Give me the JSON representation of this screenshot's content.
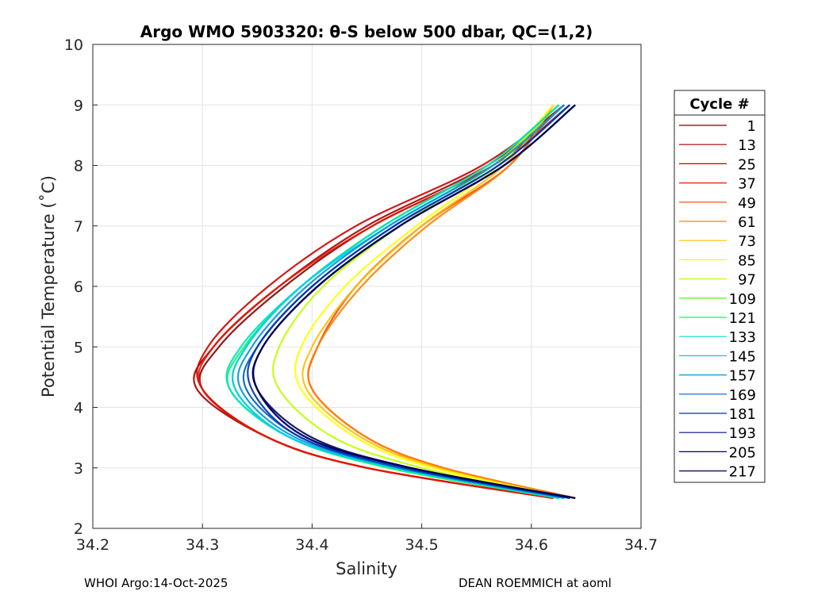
{
  "chart_data": {
    "type": "line",
    "title": "Argo WMO 5903320: θ-S below 500 dbar,  QC=(1,2)",
    "xlabel": "Salinity",
    "ylabel": "Potential Temperature (˚C)",
    "xlim": [
      34.2,
      34.7
    ],
    "ylim": [
      2,
      10
    ],
    "xticks": [
      "34.2",
      "34.3",
      "34.4",
      "34.5",
      "34.6",
      "34.7"
    ],
    "yticks": [
      "2",
      "3",
      "4",
      "5",
      "6",
      "7",
      "8",
      "9",
      "10"
    ],
    "grid": true,
    "legend_title": "Cycle #",
    "legend_position": "right-outside",
    "series": [
      {
        "name": "1",
        "color": "#7f0000",
        "theta": [
          9.0,
          8.0,
          7.0,
          6.0,
          5.0,
          4.3,
          3.5,
          3.0,
          2.5
        ],
        "salinity": [
          34.63,
          34.565,
          34.455,
          34.375,
          34.315,
          34.3,
          34.36,
          34.45,
          34.62
        ]
      },
      {
        "name": "13",
        "color": "#a50000",
        "theta": [
          9.0,
          8.0,
          7.0,
          6.0,
          5.0,
          4.3,
          3.5,
          3.0,
          2.5
        ],
        "salinity": [
          34.63,
          34.56,
          34.45,
          34.37,
          34.31,
          34.295,
          34.36,
          34.45,
          34.62
        ]
      },
      {
        "name": "25",
        "color": "#cc0000",
        "theta": [
          9.0,
          8.0,
          7.0,
          6.0,
          5.0,
          4.3,
          3.5,
          3.0,
          2.5
        ],
        "salinity": [
          34.63,
          34.555,
          34.44,
          34.36,
          34.305,
          34.3,
          34.36,
          34.45,
          34.62
        ]
      },
      {
        "name": "37",
        "color": "#e61a00",
        "theta": [
          9.0,
          8.0,
          7.0,
          6.0,
          5.0,
          4.3,
          3.5,
          3.0,
          2.5
        ],
        "salinity": [
          34.635,
          34.565,
          34.455,
          34.37,
          34.31,
          34.3,
          34.36,
          34.45,
          34.62
        ]
      },
      {
        "name": "49",
        "color": "#ff4000",
        "theta": [
          9.0,
          8.0,
          7.0,
          6.0,
          5.0,
          4.3,
          3.5,
          3.0,
          2.5
        ],
        "salinity": [
          34.62,
          34.58,
          34.5,
          34.44,
          34.405,
          34.4,
          34.45,
          34.52,
          34.64
        ]
      },
      {
        "name": "61",
        "color": "#ff8000",
        "theta": [
          9.0,
          8.0,
          7.0,
          6.0,
          5.0,
          4.3,
          3.5,
          3.0,
          2.5
        ],
        "salinity": [
          34.62,
          34.58,
          34.505,
          34.445,
          34.405,
          34.4,
          34.45,
          34.52,
          34.64
        ]
      },
      {
        "name": "73",
        "color": "#ffbf00",
        "theta": [
          9.0,
          8.0,
          7.0,
          6.0,
          5.0,
          4.3,
          3.5,
          3.0,
          2.5
        ],
        "salinity": [
          34.62,
          34.575,
          34.5,
          34.44,
          34.4,
          34.395,
          34.445,
          34.515,
          34.635
        ]
      },
      {
        "name": "85",
        "color": "#ffff00",
        "theta": [
          9.0,
          8.0,
          7.0,
          6.0,
          5.0,
          4.3,
          3.5,
          3.0,
          2.5
        ],
        "salinity": [
          34.62,
          34.57,
          34.495,
          34.43,
          34.39,
          34.39,
          34.44,
          34.51,
          34.635
        ]
      },
      {
        "name": "97",
        "color": "#bfff00",
        "theta": [
          9.0,
          8.0,
          7.0,
          6.0,
          5.0,
          4.3,
          3.5,
          3.0,
          2.5
        ],
        "salinity": [
          34.625,
          34.565,
          34.48,
          34.41,
          34.37,
          34.37,
          34.42,
          34.5,
          34.63
        ]
      },
      {
        "name": "109",
        "color": "#40ff00",
        "theta": [
          9.0,
          8.0,
          7.0,
          6.0,
          5.0,
          4.3,
          3.5,
          3.0,
          2.5
        ],
        "salinity": [
          34.625,
          34.56,
          34.465,
          34.39,
          34.34,
          34.33,
          34.38,
          34.47,
          34.625
        ]
      },
      {
        "name": "121",
        "color": "#00ff60",
        "theta": [
          9.0,
          8.0,
          7.0,
          6.0,
          5.0,
          4.3,
          3.5,
          3.0,
          2.5
        ],
        "salinity": [
          34.625,
          34.56,
          34.465,
          34.39,
          34.338,
          34.325,
          34.38,
          34.47,
          34.625
        ]
      },
      {
        "name": "133",
        "color": "#00e0c0",
        "theta": [
          9.0,
          8.0,
          7.0,
          6.0,
          5.0,
          4.3,
          3.5,
          3.0,
          2.5
        ],
        "salinity": [
          34.625,
          34.56,
          34.465,
          34.39,
          34.335,
          34.325,
          34.38,
          34.475,
          34.625
        ]
      },
      {
        "name": "145",
        "color": "#00c8ff",
        "theta": [
          9.0,
          8.0,
          7.0,
          6.0,
          5.0,
          4.3,
          3.5,
          3.0,
          2.5
        ],
        "salinity": [
          34.63,
          34.565,
          34.47,
          34.39,
          34.34,
          34.33,
          34.38,
          34.475,
          34.63
        ]
      },
      {
        "name": "157",
        "color": "#0096d8",
        "theta": [
          9.0,
          8.0,
          7.0,
          6.0,
          5.0,
          4.3,
          3.5,
          3.0,
          2.5
        ],
        "salinity": [
          34.63,
          34.565,
          34.47,
          34.395,
          34.345,
          34.335,
          34.385,
          34.48,
          34.63
        ]
      },
      {
        "name": "169",
        "color": "#0060c0",
        "theta": [
          9.0,
          8.0,
          7.0,
          6.0,
          5.0,
          4.3,
          3.5,
          3.0,
          2.5
        ],
        "salinity": [
          34.635,
          34.57,
          34.475,
          34.4,
          34.35,
          34.34,
          34.39,
          34.48,
          34.635
        ]
      },
      {
        "name": "181",
        "color": "#0030b0",
        "theta": [
          9.0,
          8.0,
          7.0,
          6.0,
          5.0,
          4.3,
          3.5,
          3.0,
          2.5
        ],
        "salinity": [
          34.635,
          34.57,
          34.475,
          34.4,
          34.35,
          34.345,
          34.39,
          34.485,
          34.635
        ]
      },
      {
        "name": "193",
        "color": "#000c90",
        "theta": [
          9.0,
          8.0,
          7.0,
          6.0,
          5.0,
          4.3,
          3.5,
          3.0,
          2.5
        ],
        "salinity": [
          34.64,
          34.575,
          34.48,
          34.405,
          34.355,
          34.35,
          34.395,
          34.49,
          34.64
        ]
      },
      {
        "name": "205",
        "color": "#000070",
        "theta": [
          9.0,
          8.0,
          7.0,
          6.0,
          5.0,
          4.3,
          3.5,
          3.0,
          2.5
        ],
        "salinity": [
          34.64,
          34.575,
          34.48,
          34.405,
          34.355,
          34.35,
          34.395,
          34.49,
          34.64
        ]
      },
      {
        "name": "217",
        "color": "#000050",
        "theta": [
          9.0,
          8.0,
          7.0,
          6.0,
          5.0,
          4.3,
          3.5,
          3.0,
          2.5
        ],
        "salinity": [
          34.64,
          34.575,
          34.48,
          34.405,
          34.355,
          34.35,
          34.4,
          34.49,
          34.64
        ]
      }
    ]
  },
  "footer": {
    "left": "WHOI Argo:14-Oct-2025",
    "right": "DEAN ROEMMICH at aoml"
  }
}
